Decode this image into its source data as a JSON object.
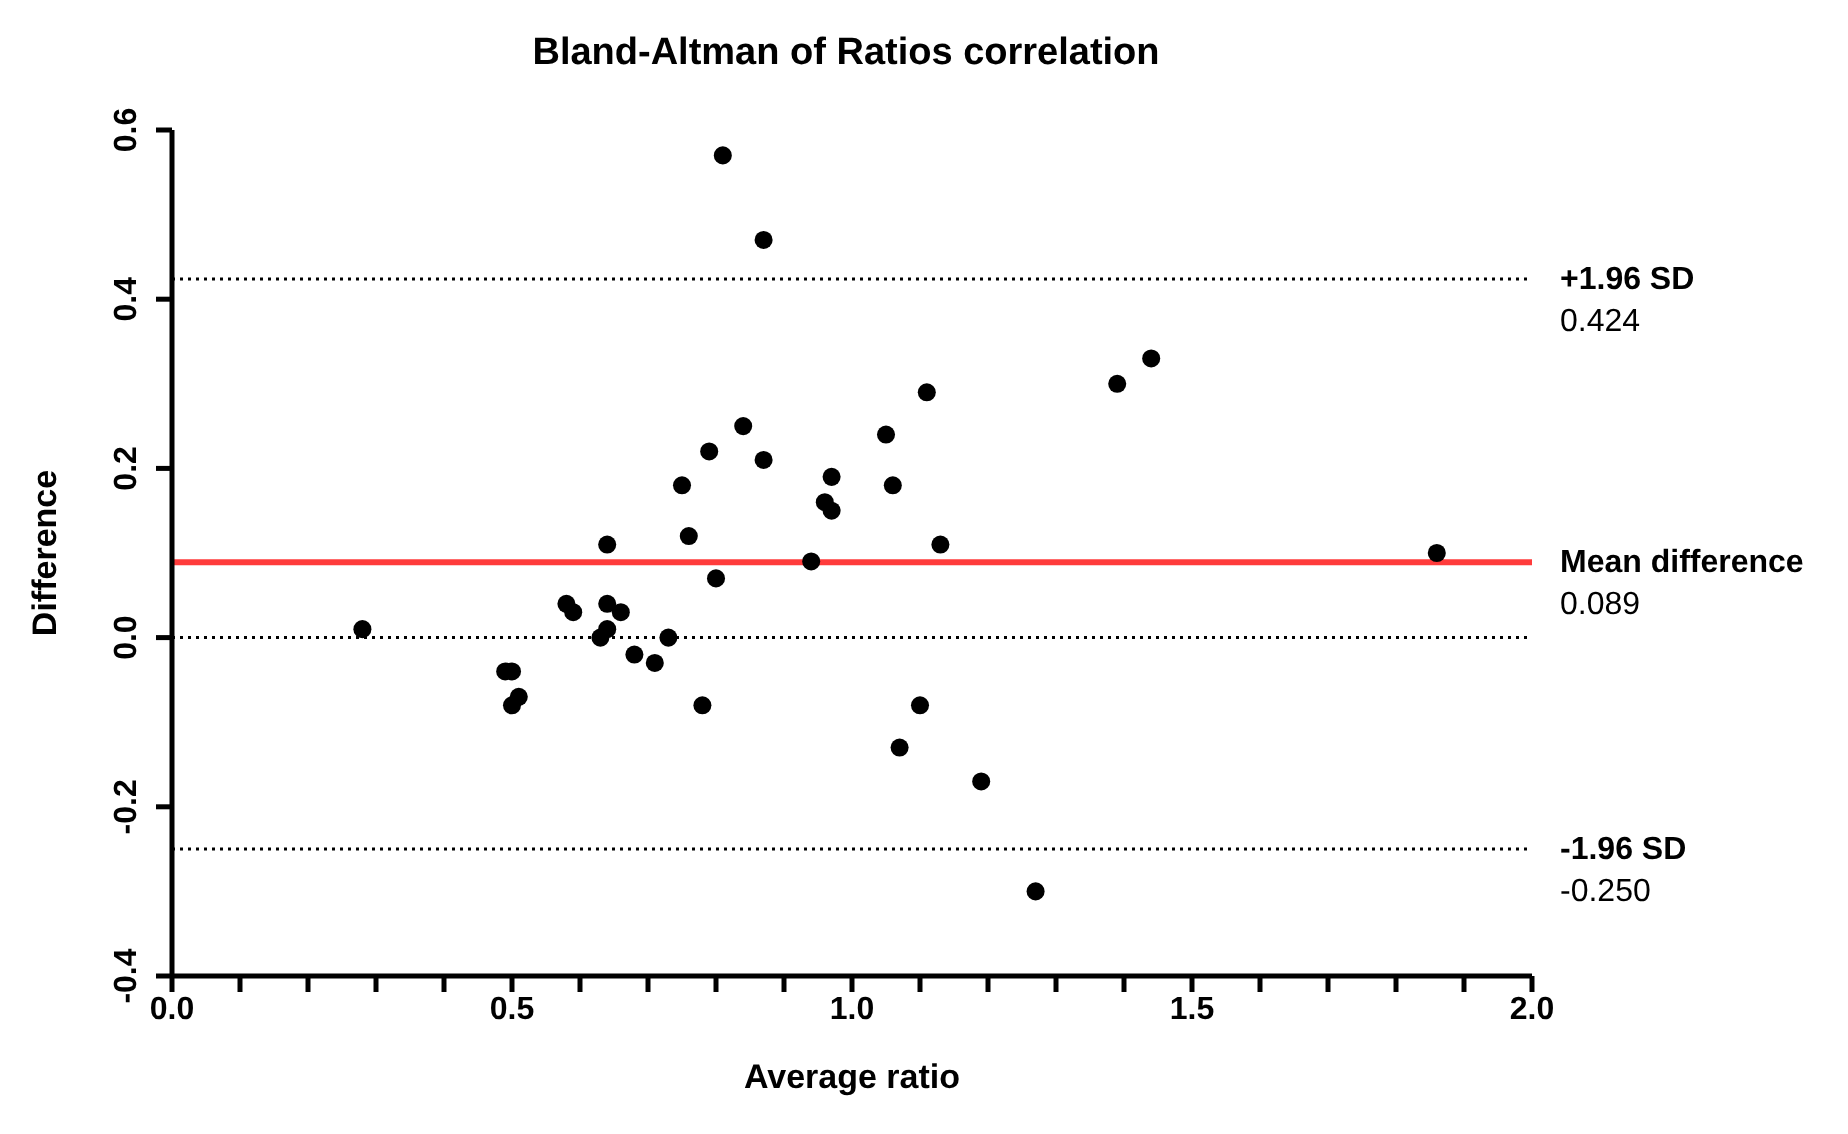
{
  "chart_data": {
    "type": "scatter",
    "title": "Bland-Altman of Ratios correlation",
    "xlabel": "Average ratio",
    "ylabel": "Difference",
    "xlim": [
      0,
      2
    ],
    "xticks": [
      {
        "value": 0,
        "label": "0.0"
      },
      {
        "value": 0.1,
        "label": null
      },
      {
        "value": 0.2,
        "label": null
      },
      {
        "value": 0.3,
        "label": null
      },
      {
        "value": 0.4,
        "label": null
      },
      0.5,
      {
        "value": 0.6,
        "label": null
      },
      {
        "value": 0.7,
        "label": null
      },
      {
        "value": 0.8,
        "label": null
      },
      {
        "value": 0.9,
        "label": null
      },
      {
        "value": 1,
        "label": "1.0"
      },
      {
        "value": 1.1,
        "label": null
      },
      {
        "value": 1.2,
        "label": null
      },
      {
        "value": 1.3,
        "label": null
      },
      {
        "value": 1.4,
        "label": null
      },
      1.5,
      {
        "value": 1.6,
        "label": null
      },
      {
        "value": 1.7,
        "label": null
      },
      {
        "value": 1.8,
        "label": null
      },
      {
        "value": 1.9,
        "label": null
      },
      {
        "value": 2,
        "label": "2.0"
      }
    ],
    "ylim": [
      -0.4,
      0.6
    ],
    "yticks": [
      -0.4,
      -0.2,
      {
        "value": 0,
        "label": "0.0"
      },
      0.2,
      0.4,
      0.6
    ],
    "marker": "circle",
    "series": [
      {
        "color": "#000000",
        "x": [
          0.81,
          0.87,
          0.84,
          0.79,
          0.87,
          0.75,
          0.76,
          0.64,
          0.8,
          1.05,
          1.06,
          0.97,
          0.96,
          0.97,
          0.94,
          0.28,
          0.58,
          0.59,
          0.64,
          0.66,
          0.64,
          0.63,
          0.73,
          0.68,
          0.71,
          0.49,
          0.5,
          0.51,
          0.5,
          0.78,
          1.07,
          1.11,
          1.13,
          1.39,
          1.44,
          1.86,
          1.1,
          1.19,
          1.27
        ],
        "values": [
          0.57,
          0.47,
          0.25,
          0.22,
          0.21,
          0.18,
          0.12,
          0.11,
          0.07,
          0.24,
          0.18,
          0.19,
          0.16,
          0.15,
          0.09,
          0.01,
          0.04,
          0.03,
          0.04,
          0.03,
          0.01,
          0.0,
          0.0,
          -0.02,
          -0.03,
          -0.04,
          -0.04,
          -0.07,
          -0.08,
          -0.08,
          -0.13,
          0.29,
          0.11,
          0.3,
          0.33,
          0.1,
          -0.08,
          -0.17,
          -0.3
        ]
      }
    ],
    "ref_lines": [
      {
        "axis": "y",
        "value": 0.424,
        "label": "+1.96 SD\n0.424",
        "color": "#000000",
        "line_style": "dotted"
      },
      {
        "axis": "y",
        "value": 0.089,
        "label": "Mean difference\n0.089",
        "color": "#ff3b3b",
        "line_style": "solid"
      },
      {
        "axis": "y",
        "value": 0,
        "color": "#000000",
        "line_style": "dotted"
      },
      {
        "axis": "y",
        "value": -0.25,
        "label": "-1.96 SD\n-0.250",
        "color": "#000000",
        "line_style": "dotted"
      }
    ]
  }
}
